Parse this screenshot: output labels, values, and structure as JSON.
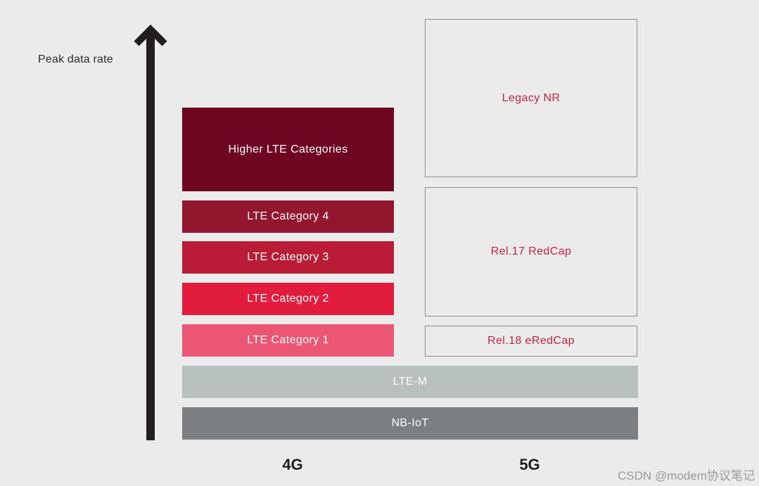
{
  "axis": {
    "label": "Peak data rate"
  },
  "generations": {
    "g4": "4G",
    "g5": "5G"
  },
  "blocks_4g": [
    {
      "label": "Higher LTE Categories",
      "color": "#6e0521"
    },
    {
      "label": "LTE Category 4",
      "color": "#93162f"
    },
    {
      "label": "LTE Category 3",
      "color": "#b91c35"
    },
    {
      "label": "LTE Category 2",
      "color": "#e21c3c"
    },
    {
      "label": "LTE Category 1",
      "color": "#eb5674"
    }
  ],
  "blocks_5g": [
    {
      "label": "Legacy NR",
      "text_color": "#c8243d",
      "border_color": "#8e8e8e"
    },
    {
      "label": "Rel.17 RedCap",
      "text_color": "#c8243d",
      "border_color": "#8e8e8e"
    },
    {
      "label": "Rel.18 eRedCap",
      "text_color": "#c8243d",
      "border_color": "#8e8e8e"
    }
  ],
  "shared_blocks": [
    {
      "label": "LTE-M",
      "color": "#b8bfbf"
    },
    {
      "label": "NB-IoT",
      "color": "#7c7f81"
    }
  ],
  "watermark": "CSDN @modem协议笔记",
  "colors": {
    "background": "#ebebeb",
    "axis": "#231f20"
  }
}
